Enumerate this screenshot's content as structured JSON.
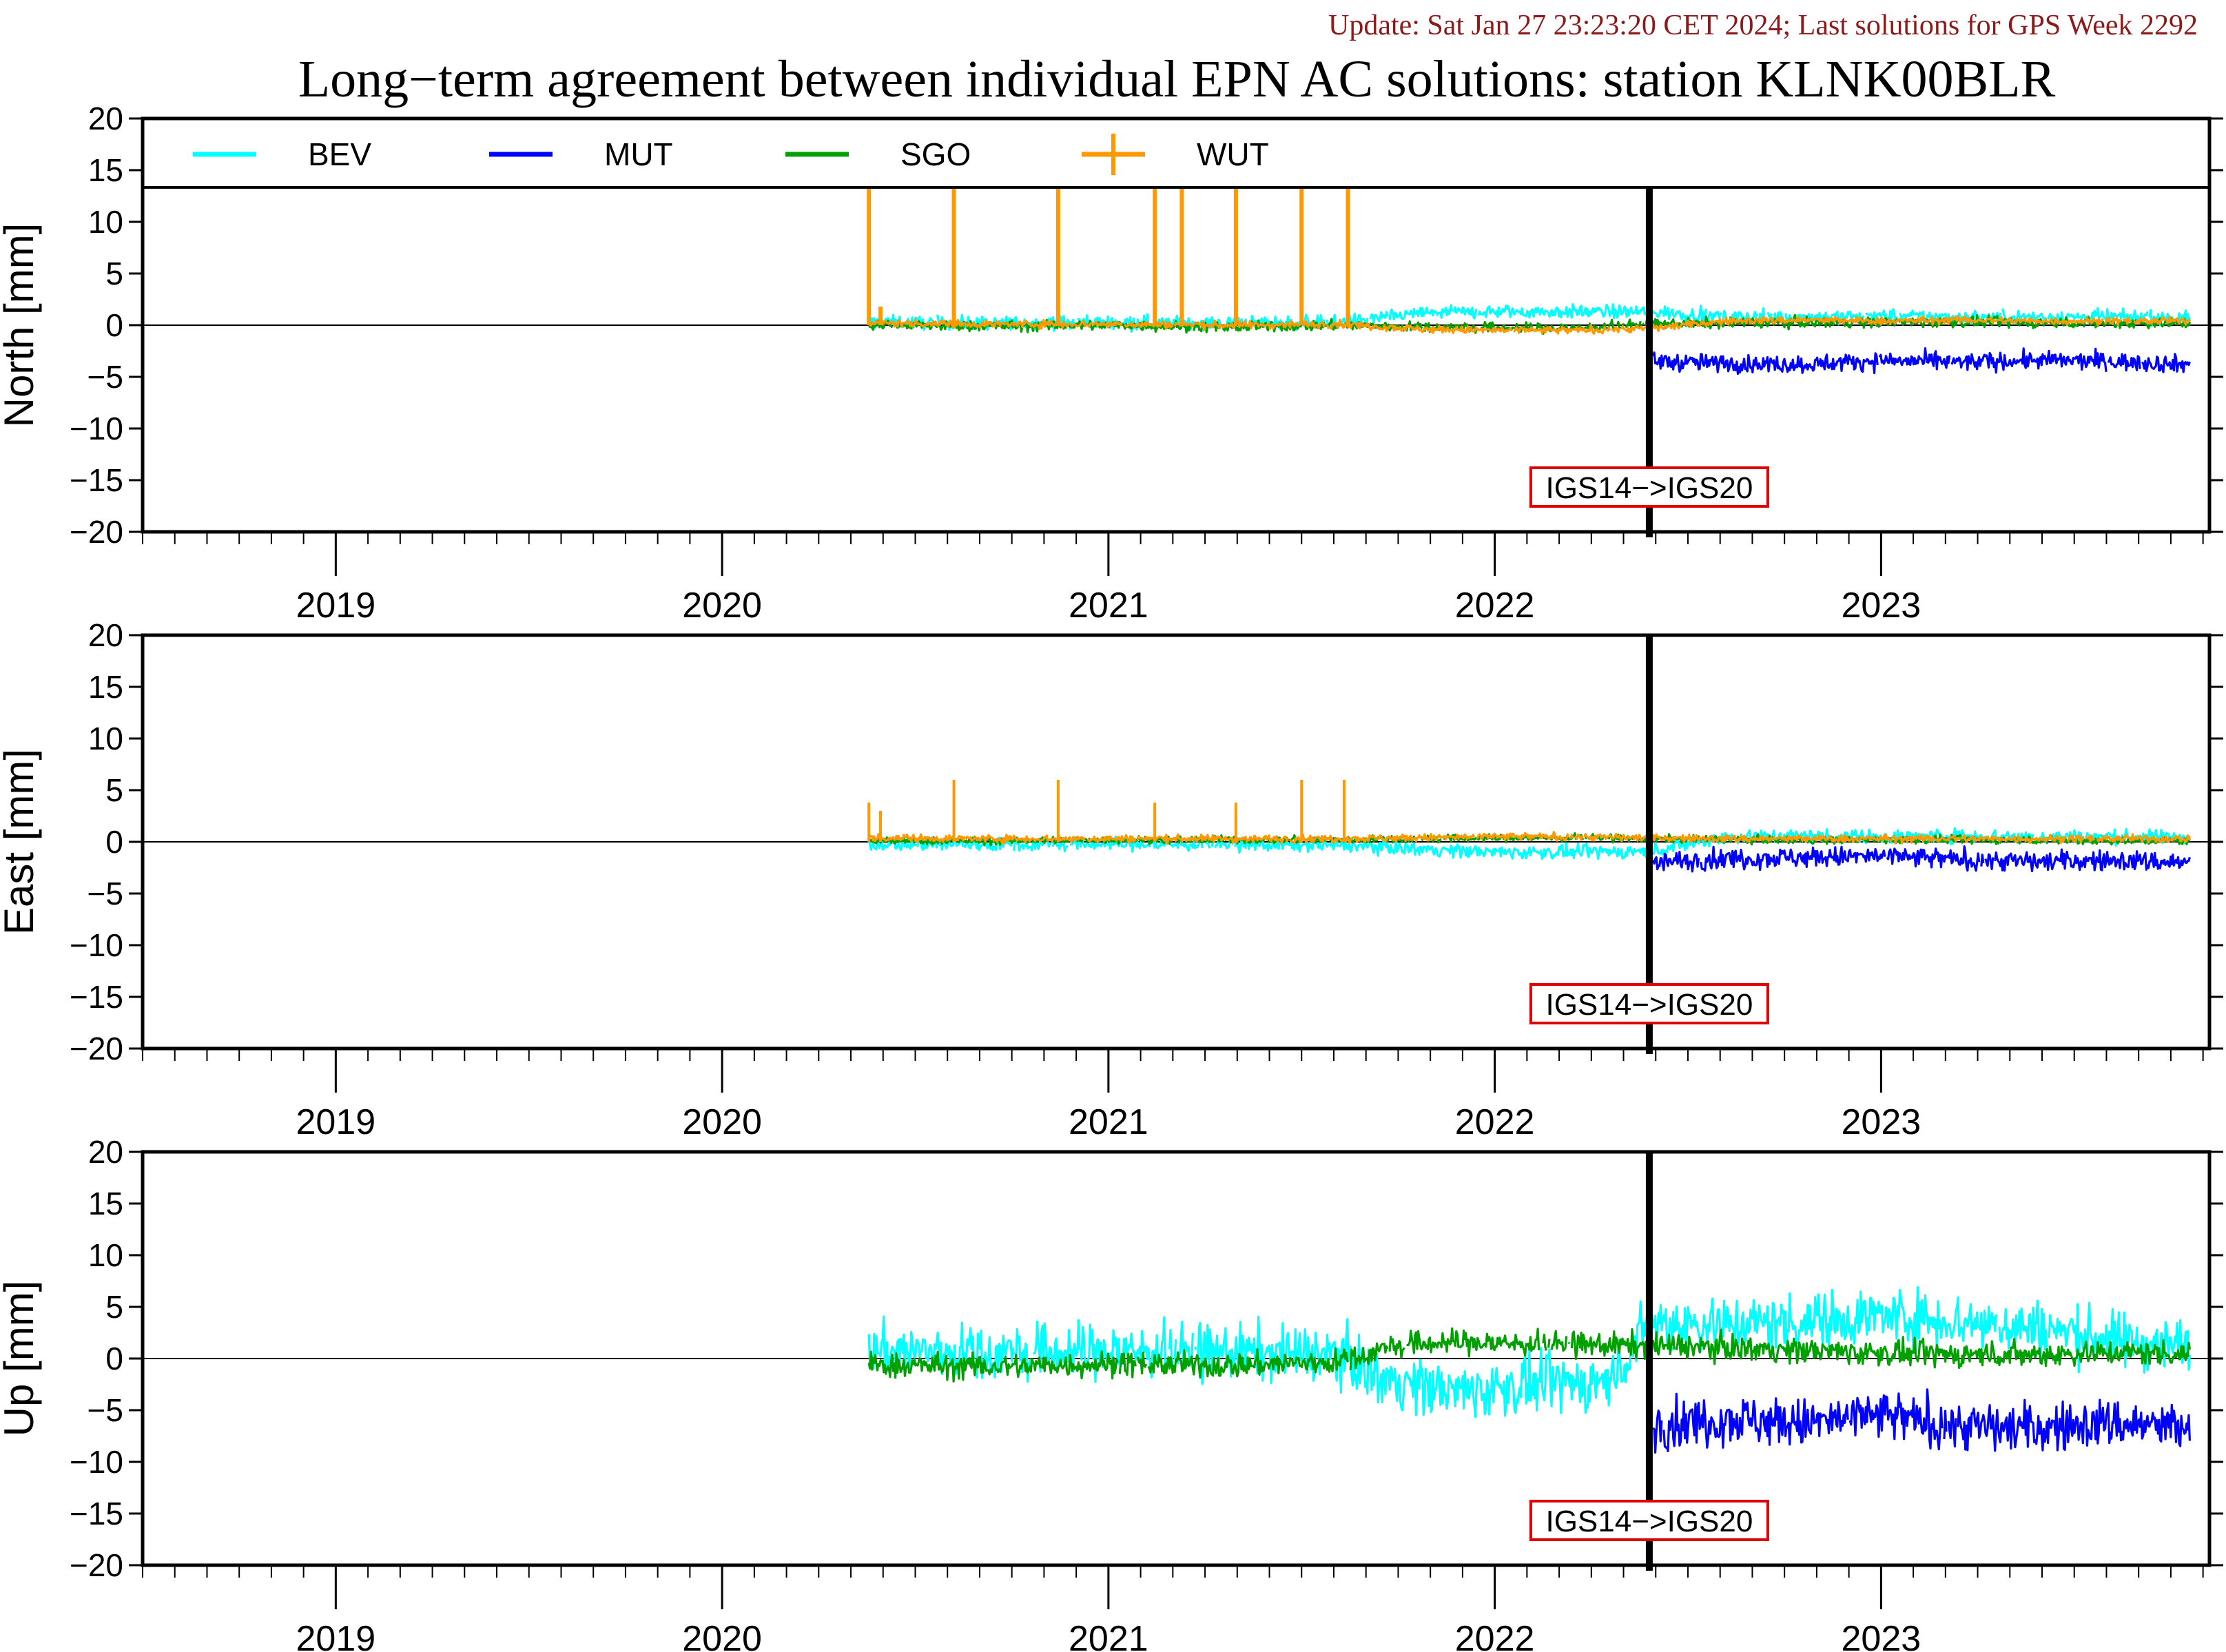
{
  "update_text": "Update: Sat Jan 27 23:23:20 CET 2024; Last solutions for GPS Week 2292",
  "title": "Long−term agreement between individual EPN AC solutions: station KLNK00BLR",
  "annotation": "IGS14−>IGS20",
  "chart_data": {
    "type": "line",
    "x_unit": "decimal year",
    "xlim": [
      2018.5,
      2023.85
    ],
    "x_tick_labels": [
      "2019",
      "2020",
      "2021",
      "2022",
      "2023"
    ],
    "ylim": [
      -20,
      20
    ],
    "y_ticks": [
      20,
      15,
      10,
      5,
      0,
      -5,
      -10,
      -15,
      -20
    ],
    "y_tick_labels": [
      "20",
      "15",
      "10",
      "5",
      "0",
      "−5",
      "−10",
      "−15",
      "−20"
    ],
    "legend": {
      "placement": "top (inside first panel)",
      "entries": [
        {
          "name": "BEV",
          "color": "#00ffff"
        },
        {
          "name": "MUT",
          "color": "#0000ff"
        },
        {
          "name": "SGO",
          "color": "#00a000"
        },
        {
          "name": "WUT",
          "color": "#ff9900"
        }
      ]
    },
    "frame_change": {
      "x": 2022.4,
      "label": "IGS14−>IGS20"
    },
    "panels": [
      {
        "ylabel": "North [mm]",
        "series": [
          {
            "name": "BEV",
            "color": "#00ffff",
            "x": [
              2020.38,
              2020.7,
              2021.0,
              2021.3,
              2021.6,
              2021.82,
              2022.0,
              2022.2,
              2022.4,
              2022.6,
              2022.8,
              2023.0,
              2023.2,
              2023.4,
              2023.6,
              2023.8
            ],
            "y": [
              0.3,
              0.2,
              0.3,
              0.2,
              0.3,
              1.2,
              1.3,
              1.3,
              1.3,
              0.8,
              0.8,
              0.9,
              0.8,
              0.8,
              0.8,
              0.7
            ]
          },
          {
            "name": "MUT",
            "color": "#0000ff",
            "x": [
              2022.41,
              2022.6,
              2022.8,
              2023.0,
              2023.2,
              2023.4,
              2023.6,
              2023.8
            ],
            "y": [
              -3.5,
              -3.7,
              -3.8,
              -3.4,
              -3.6,
              -3.4,
              -3.5,
              -3.8
            ]
          },
          {
            "name": "SGO",
            "color": "#00a000",
            "x": [
              2020.38,
              2020.7,
              2021.0,
              2021.3,
              2021.6,
              2021.82,
              2022.2,
              2022.4,
              2022.8,
              2023.2,
              2023.6,
              2023.8
            ],
            "y": [
              0.0,
              -0.1,
              0.0,
              -0.2,
              0.0,
              -0.2,
              -0.3,
              0.1,
              0.3,
              0.3,
              0.2,
              0.2
            ]
          },
          {
            "name": "WUT",
            "color": "#ff9900",
            "x": [
              2020.38,
              2020.7,
              2021.0,
              2021.3,
              2021.6,
              2021.82,
              2022.0,
              2022.2,
              2022.4,
              2022.6,
              2022.8,
              2023.0,
              2023.2,
              2023.4,
              2023.6,
              2023.8
            ],
            "y": [
              0.2,
              0.1,
              0.1,
              0.0,
              0.1,
              -0.4,
              -0.5,
              -0.5,
              -0.3,
              0.4,
              0.5,
              0.4,
              0.5,
              0.4,
              0.4,
              0.4
            ]
          }
        ]
      },
      {
        "ylabel": "East [mm]",
        "series": [
          {
            "name": "BEV",
            "color": "#00ffff",
            "x": [
              2020.38,
              2020.7,
              2021.0,
              2021.3,
              2021.6,
              2021.82,
              2022.0,
              2022.2,
              2022.4,
              2022.6,
              2022.8,
              2023.0,
              2023.2,
              2023.4,
              2023.6,
              2023.8
            ],
            "y": [
              -0.2,
              -0.3,
              -0.2,
              -0.3,
              -0.3,
              -0.7,
              -1.0,
              -1.0,
              -0.9,
              0.5,
              0.6,
              0.5,
              0.6,
              0.5,
              0.5,
              0.5
            ]
          },
          {
            "name": "MUT",
            "color": "#0000ff",
            "x": [
              2022.41,
              2022.6,
              2022.8,
              2023.0,
              2023.2,
              2023.4,
              2023.6,
              2023.8
            ],
            "y": [
              -2.0,
              -1.6,
              -1.5,
              -1.4,
              -1.7,
              -1.9,
              -1.8,
              -2.0
            ]
          },
          {
            "name": "SGO",
            "color": "#00a000",
            "x": [
              2020.38,
              2020.7,
              2021.0,
              2021.3,
              2021.6,
              2021.82,
              2022.2,
              2022.4,
              2022.8,
              2023.2,
              2023.6,
              2023.8
            ],
            "y": [
              0.1,
              0.1,
              0.2,
              0.2,
              0.2,
              0.3,
              0.4,
              0.3,
              0.2,
              0.2,
              0.1,
              0.1
            ]
          },
          {
            "name": "WUT",
            "color": "#ff9900",
            "x": [
              2020.38,
              2020.7,
              2021.0,
              2021.3,
              2021.6,
              2021.82,
              2022.0,
              2022.2,
              2022.4,
              2022.6,
              2022.8,
              2023.0,
              2023.2,
              2023.4,
              2023.6,
              2023.8
            ],
            "y": [
              0.4,
              0.3,
              0.3,
              0.3,
              0.3,
              0.4,
              0.5,
              0.5,
              0.4,
              0.3,
              0.3,
              0.3,
              0.3,
              0.3,
              0.3,
              0.3
            ]
          }
        ]
      },
      {
        "ylabel": "Up [mm]",
        "series": [
          {
            "name": "BEV",
            "color": "#00ffff",
            "x": [
              2020.38,
              2020.7,
              2021.0,
              2021.3,
              2021.6,
              2021.7,
              2021.9,
              2022.1,
              2022.3,
              2022.4,
              2022.6,
              2022.8,
              2023.0,
              2023.2,
              2023.4,
              2023.6,
              2023.8
            ],
            "y": [
              0.8,
              0.5,
              0.8,
              0.6,
              0.4,
              -1.8,
              -3.2,
              -2.6,
              -2.2,
              3.5,
              3.3,
              3.6,
              4.2,
              3.6,
              3.0,
              1.8,
              1.2
            ]
          },
          {
            "name": "MUT",
            "color": "#0000ff",
            "x": [
              2022.41,
              2022.6,
              2022.8,
              2023.0,
              2023.2,
              2023.4,
              2023.6,
              2023.8
            ],
            "y": [
              -6.5,
              -5.8,
              -6.3,
              -5.5,
              -6.5,
              -6.8,
              -6.2,
              -6.8
            ]
          },
          {
            "name": "SGO",
            "color": "#00a000",
            "x": [
              2020.38,
              2020.7,
              2021.0,
              2021.3,
              2021.6,
              2021.75,
              2021.9,
              2022.1,
              2022.3,
              2022.5,
              2022.8,
              2023.1,
              2023.4,
              2023.6,
              2023.8
            ],
            "y": [
              -0.6,
              -0.8,
              -0.5,
              -0.7,
              -0.3,
              1.3,
              1.6,
              1.4,
              1.3,
              1.2,
              0.8,
              0.4,
              0.4,
              0.6,
              0.5
            ]
          }
        ]
      }
    ]
  }
}
